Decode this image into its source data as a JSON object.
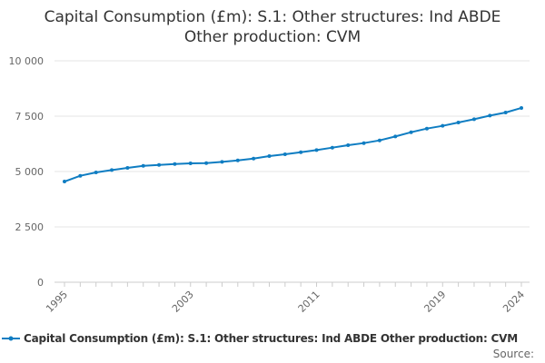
{
  "chart_data": {
    "type": "line",
    "title_line1": "Capital Consumption (£m): S.1: Other structures: Ind ABDE",
    "title_line2": "Other production: CVM",
    "xlabel": "",
    "ylabel": "",
    "ylim": [
      0,
      10000
    ],
    "yticks": [
      0,
      2500,
      5000,
      7500,
      10000
    ],
    "ytick_labels": [
      "0",
      "2 500",
      "5 000",
      "7 500",
      "10 000"
    ],
    "xticks": [
      1995,
      2003,
      2011,
      2019,
      2024
    ],
    "grid": true,
    "legend_position": "bottom",
    "color": "#0f7dc2",
    "series": [
      {
        "name": "Capital Consumption (£m): S.1: Other structures: Ind ABDE Other production: CVM",
        "x": [
          1995,
          1996,
          1997,
          1998,
          1999,
          2000,
          2001,
          2002,
          2003,
          2004,
          2005,
          2006,
          2007,
          2008,
          2009,
          2010,
          2011,
          2012,
          2013,
          2014,
          2015,
          2016,
          2017,
          2018,
          2019,
          2020,
          2021,
          2022,
          2023,
          2024
        ],
        "values": [
          4549,
          4807,
          4959,
          5066,
          5164,
          5258,
          5299,
          5340,
          5369,
          5381,
          5435,
          5504,
          5586,
          5697,
          5779,
          5870,
          5968,
          6078,
          6189,
          6283,
          6406,
          6583,
          6775,
          6939,
          7062,
          7214,
          7361,
          7525,
          7665,
          7870
        ]
      }
    ],
    "source_label": "Source:"
  }
}
